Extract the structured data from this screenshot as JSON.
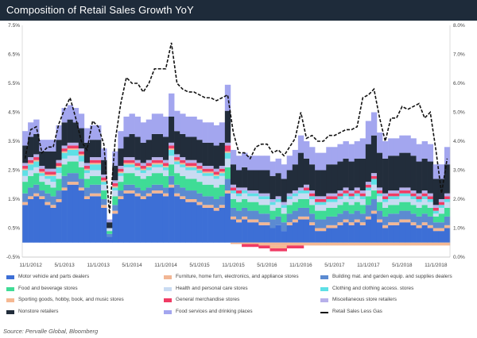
{
  "title": "Composition of Retail Sales Growth YoY",
  "source": "Source: Pervalle Global, Bloomberg",
  "chart_data": {
    "type": "bar",
    "stacked": true,
    "x_tick_labels": [
      "11/1/2012",
      "5/1/2013",
      "11/1/2013",
      "5/1/2014",
      "11/1/2014",
      "5/1/2015",
      "11/1/2015",
      "5/1/2016",
      "11/1/2016",
      "5/1/2017",
      "11/1/2017",
      "5/1/2018",
      "11/1/2018"
    ],
    "y_left": {
      "ticks": [
        "-0.5%",
        "0.5%",
        "1.5%",
        "2.5%",
        "3.5%",
        "4.5%",
        "5.5%",
        "6.5%",
        "7.5%"
      ],
      "range": [
        -0.5,
        7.5
      ]
    },
    "y_right": {
      "ticks": [
        "0.0%",
        "1.0%",
        "2.0%",
        "3.0%",
        "4.0%",
        "5.0%",
        "6.0%",
        "7.0%",
        "8.0%"
      ],
      "range": [
        0,
        8
      ]
    },
    "grid": false,
    "legend_position": "bottom",
    "categories": [
      "Oct-12",
      "Nov-12",
      "Dec-12",
      "Jan-13",
      "Feb-13",
      "Mar-13",
      "Apr-13",
      "May-13",
      "Jun-13",
      "Jul-13",
      "Aug-13",
      "Sep-13",
      "Oct-13",
      "Nov-13",
      "Dec-13",
      "Jan-14",
      "Feb-14",
      "Mar-14",
      "Apr-14",
      "May-14",
      "Jun-14",
      "Jul-14",
      "Aug-14",
      "Sep-14",
      "Oct-14",
      "Nov-14",
      "Dec-14",
      "Jan-15",
      "Feb-15",
      "Mar-15",
      "Apr-15",
      "May-15",
      "Jun-15",
      "Jul-15",
      "Aug-15",
      "Sep-15",
      "Oct-15",
      "Nov-15",
      "Dec-15",
      "Jan-16",
      "Feb-16",
      "Mar-16",
      "Apr-16",
      "May-16",
      "Jun-16",
      "Jul-16",
      "Aug-16",
      "Sep-16",
      "Oct-16",
      "Nov-16",
      "Dec-16",
      "Jan-17",
      "Feb-17",
      "Mar-17",
      "Apr-17",
      "May-17",
      "Jun-17",
      "Jul-17",
      "Aug-17",
      "Sep-17",
      "Oct-17",
      "Nov-17",
      "Dec-17",
      "Jan-18",
      "Feb-18",
      "Mar-18",
      "Apr-18",
      "May-18",
      "Jun-18",
      "Jul-18",
      "Aug-18",
      "Sep-18",
      "Oct-18",
      "Nov-18",
      "Dec-18",
      "Jan-19"
    ],
    "series": [
      {
        "name": "Motor vehicle and parts dealers",
        "color": "#3d6fd6",
        "values": [
          1.3,
          1.5,
          1.6,
          1.5,
          1.3,
          1.2,
          1.4,
          1.8,
          2.0,
          2.0,
          1.8,
          1.5,
          1.6,
          1.6,
          1.2,
          0.2,
          1.0,
          1.5,
          1.7,
          1.7,
          1.6,
          1.5,
          1.6,
          1.7,
          1.7,
          1.6,
          1.9,
          1.6,
          1.5,
          1.4,
          1.4,
          1.3,
          1.2,
          1.2,
          1.1,
          1.2,
          1.7,
          0.8,
          0.7,
          0.8,
          0.7,
          0.7,
          0.6,
          0.6,
          0.5,
          0.6,
          0.4,
          0.6,
          0.7,
          0.8,
          0.8,
          0.6,
          0.4,
          0.4,
          0.5,
          0.5,
          0.6,
          0.7,
          0.6,
          0.7,
          0.6,
          0.8,
          1.0,
          0.7,
          0.5,
          0.6,
          0.6,
          0.7,
          0.7,
          0.6,
          0.5,
          0.6,
          0.5,
          0.4,
          0.4,
          0.5
        ]
      },
      {
        "name": "Furniture, home furn, electronics, and appliance stores",
        "color": "#f2b694",
        "values": [
          0.1,
          0.1,
          0.1,
          0.1,
          0.1,
          0.1,
          0.1,
          0.1,
          0.1,
          0.1,
          0.1,
          0.1,
          0.1,
          0.1,
          0.1,
          0.0,
          0.1,
          0.1,
          0.1,
          0.1,
          0.1,
          0.1,
          0.1,
          0.1,
          0.1,
          0.1,
          0.1,
          0.1,
          0.1,
          0.1,
          0.1,
          0.1,
          0.1,
          0.1,
          0.1,
          0.1,
          0.1,
          0.1,
          0.1,
          0.1,
          0.1,
          0.1,
          0.1,
          0.1,
          -0.1,
          -0.1,
          -0.1,
          0.1,
          0.1,
          0.1,
          0.1,
          0.1,
          0.1,
          0.1,
          0.1,
          0.1,
          0.1,
          0.1,
          0.1,
          0.1,
          0.1,
          0.1,
          0.1,
          0.1,
          0.1,
          0.1,
          0.1,
          0.1,
          0.1,
          0.1,
          0.1,
          0.1,
          0.1,
          0.1,
          0.1,
          0.1
        ]
      },
      {
        "name": "Building mat. and garden equip. and supplies dealers",
        "color": "#5c8bd1",
        "values": [
          0.3,
          0.3,
          0.3,
          0.2,
          0.3,
          0.3,
          0.3,
          0.4,
          0.3,
          0.3,
          0.3,
          0.3,
          0.3,
          0.3,
          0.2,
          0.1,
          0.2,
          0.2,
          0.2,
          0.2,
          0.2,
          0.2,
          0.2,
          0.2,
          0.2,
          0.2,
          0.3,
          0.3,
          0.3,
          0.3,
          0.3,
          0.3,
          0.3,
          0.3,
          0.3,
          0.3,
          0.4,
          0.3,
          0.3,
          0.3,
          0.3,
          0.3,
          0.3,
          0.3,
          0.3,
          0.3,
          0.3,
          0.3,
          0.3,
          0.3,
          0.3,
          0.3,
          0.3,
          0.3,
          0.3,
          0.3,
          0.3,
          0.3,
          0.3,
          0.3,
          0.3,
          0.4,
          0.4,
          0.3,
          0.3,
          0.3,
          0.3,
          0.3,
          0.3,
          0.3,
          0.3,
          0.3,
          0.3,
          0.2,
          0.2,
          0.3
        ]
      },
      {
        "name": "Food and beverage stores",
        "color": "#3fdc96",
        "values": [
          0.4,
          0.4,
          0.4,
          0.3,
          0.3,
          0.3,
          0.4,
          0.4,
          0.4,
          0.4,
          0.4,
          0.3,
          0.3,
          0.3,
          0.3,
          0.1,
          0.3,
          0.3,
          0.4,
          0.4,
          0.4,
          0.4,
          0.4,
          0.4,
          0.4,
          0.4,
          0.4,
          0.4,
          0.4,
          0.4,
          0.4,
          0.4,
          0.4,
          0.4,
          0.4,
          0.4,
          0.4,
          0.3,
          0.3,
          0.3,
          0.3,
          0.3,
          0.3,
          0.3,
          0.3,
          0.3,
          0.3,
          0.3,
          0.3,
          0.3,
          0.3,
          0.3,
          0.3,
          0.3,
          0.3,
          0.3,
          0.3,
          0.3,
          0.3,
          0.3,
          0.3,
          0.3,
          0.3,
          0.3,
          0.3,
          0.3,
          0.3,
          0.3,
          0.3,
          0.3,
          0.3,
          0.3,
          0.3,
          0.2,
          0.3,
          0.3
        ]
      },
      {
        "name": "Health and personal care stores",
        "color": "#c9dbf2",
        "values": [
          0.2,
          0.2,
          0.2,
          0.2,
          0.2,
          0.2,
          0.2,
          0.2,
          0.2,
          0.2,
          0.2,
          0.2,
          0.2,
          0.2,
          0.2,
          0.1,
          0.2,
          0.2,
          0.2,
          0.2,
          0.2,
          0.2,
          0.2,
          0.2,
          0.2,
          0.2,
          0.3,
          0.3,
          0.3,
          0.3,
          0.3,
          0.3,
          0.3,
          0.3,
          0.3,
          0.3,
          0.3,
          0.2,
          0.2,
          0.2,
          0.2,
          0.2,
          0.2,
          0.2,
          0.2,
          0.2,
          0.2,
          0.2,
          0.2,
          0.2,
          0.2,
          0.2,
          0.2,
          0.2,
          0.2,
          0.2,
          0.2,
          0.2,
          0.2,
          0.2,
          0.2,
          0.2,
          0.2,
          0.2,
          0.2,
          0.2,
          0.2,
          0.2,
          0.2,
          0.2,
          0.2,
          0.2,
          0.2,
          0.1,
          0.2,
          0.2
        ]
      },
      {
        "name": "Clothing and clothing access. stores",
        "color": "#5ee0e6",
        "values": [
          0.2,
          0.2,
          0.2,
          0.1,
          0.1,
          0.2,
          0.2,
          0.2,
          0.2,
          0.2,
          0.2,
          0.1,
          0.2,
          0.2,
          0.1,
          0.0,
          0.1,
          0.1,
          0.1,
          0.1,
          0.1,
          0.1,
          0.1,
          0.1,
          0.1,
          0.1,
          0.2,
          0.1,
          0.1,
          0.1,
          0.1,
          0.1,
          0.1,
          0.1,
          0.1,
          0.1,
          0.2,
          0.1,
          0.1,
          0.1,
          0.1,
          0.1,
          0.1,
          0.1,
          0.1,
          0.1,
          0.1,
          0.1,
          0.1,
          0.1,
          0.1,
          0.1,
          0.1,
          0.1,
          0.1,
          0.1,
          0.1,
          0.1,
          0.1,
          0.1,
          0.1,
          0.1,
          0.2,
          0.1,
          0.1,
          0.1,
          0.1,
          0.1,
          0.1,
          0.1,
          0.1,
          0.1,
          0.1,
          0.1,
          0.1,
          0.1
        ]
      },
      {
        "name": "Sporting goods, hobby, book, and music stores",
        "color": "#f5b892",
        "values": [
          0.05,
          0.05,
          0.05,
          0.05,
          0.05,
          0.05,
          0.05,
          0.05,
          0.05,
          0.05,
          0.05,
          0.05,
          0.05,
          0.05,
          0.05,
          0.0,
          0.05,
          0.05,
          0.05,
          0.05,
          0.05,
          0.05,
          0.05,
          0.05,
          0.05,
          0.05,
          0.05,
          0.05,
          0.05,
          0.05,
          0.05,
          0.05,
          0.05,
          0.05,
          0.05,
          0.05,
          0.05,
          -0.05,
          -0.05,
          -0.05,
          -0.05,
          -0.05,
          -0.1,
          -0.1,
          -0.1,
          -0.1,
          -0.1,
          -0.1,
          -0.1,
          -0.1,
          -0.1,
          -0.1,
          -0.1,
          -0.1,
          -0.1,
          -0.1,
          -0.1,
          -0.1,
          -0.1,
          -0.1,
          -0.1,
          -0.1,
          -0.1,
          -0.1,
          -0.1,
          -0.1,
          -0.1,
          -0.1,
          -0.1,
          -0.1,
          -0.1,
          -0.1,
          -0.1,
          -0.1,
          -0.1,
          -0.1
        ]
      },
      {
        "name": "General merchandise stores",
        "color": "#f03b64",
        "values": [
          0.1,
          0.1,
          0.1,
          0.1,
          0.1,
          0.1,
          0.1,
          0.1,
          0.1,
          0.1,
          0.1,
          0.1,
          0.1,
          0.1,
          0.1,
          0.0,
          0.1,
          0.1,
          0.1,
          0.1,
          0.1,
          0.1,
          0.1,
          0.1,
          0.1,
          0.1,
          0.1,
          0.1,
          0.1,
          0.1,
          0.1,
          0.1,
          0.1,
          0.1,
          0.1,
          0.1,
          0.2,
          0.1,
          0.1,
          -0.1,
          -0.1,
          -0.1,
          -0.1,
          -0.1,
          -0.1,
          -0.1,
          -0.1,
          -0.1,
          -0.1,
          -0.1,
          0.1,
          0.1,
          0.1,
          0.1,
          0.1,
          0.1,
          0.1,
          0.1,
          0.1,
          0.1,
          0.1,
          0.1,
          0.1,
          0.1,
          0.1,
          0.1,
          0.1,
          0.1,
          0.1,
          0.1,
          0.1,
          0.1,
          0.1,
          0.1,
          0.1,
          0.1
        ]
      },
      {
        "name": "Miscellaneous store retailers",
        "color": "#b7b0ea",
        "values": [
          0.1,
          0.1,
          0.1,
          0.1,
          0.1,
          0.1,
          0.1,
          0.1,
          0.1,
          0.1,
          0.1,
          0.1,
          0.1,
          0.1,
          0.1,
          0.0,
          0.1,
          0.1,
          0.1,
          0.1,
          0.1,
          0.1,
          0.1,
          0.1,
          0.1,
          0.1,
          0.1,
          0.1,
          0.1,
          0.1,
          0.1,
          0.1,
          0.1,
          0.1,
          0.1,
          0.1,
          0.1,
          0.1,
          0.1,
          0.1,
          0.1,
          0.1,
          0.1,
          0.1,
          0.1,
          0.1,
          0.1,
          0.1,
          0.1,
          0.1,
          0.1,
          0.1,
          0.1,
          0.1,
          0.1,
          0.1,
          0.1,
          0.1,
          0.1,
          0.1,
          0.1,
          0.1,
          0.1,
          0.1,
          0.1,
          0.1,
          0.1,
          0.1,
          0.1,
          0.1,
          0.1,
          0.1,
          0.1,
          0.1,
          0.1,
          0.1
        ]
      },
      {
        "name": "Nonstore retailers",
        "color": "#222d3b",
        "values": [
          0.6,
          0.7,
          0.7,
          0.5,
          0.6,
          0.6,
          0.7,
          0.8,
          0.8,
          0.7,
          0.7,
          0.7,
          0.6,
          0.6,
          0.5,
          0.2,
          0.5,
          0.6,
          0.7,
          0.8,
          0.8,
          0.7,
          0.7,
          0.8,
          0.8,
          0.8,
          0.9,
          0.8,
          0.8,
          0.8,
          0.8,
          0.8,
          0.8,
          0.8,
          0.8,
          0.8,
          1.1,
          0.7,
          0.6,
          0.7,
          0.7,
          0.7,
          0.8,
          0.8,
          0.8,
          0.8,
          0.8,
          0.8,
          0.9,
          1.2,
          0.9,
          0.9,
          0.9,
          0.9,
          1.0,
          1.0,
          1.0,
          1.0,
          1.0,
          1.0,
          1.1,
          1.3,
          1.3,
          1.2,
          1.2,
          1.2,
          1.2,
          1.2,
          1.2,
          1.2,
          1.1,
          1.1,
          1.1,
          0.9,
          0.7,
          1.0
        ]
      },
      {
        "name": "Food services and drinking places",
        "color": "#a3a6ef",
        "values": [
          0.5,
          0.5,
          0.5,
          0.4,
          0.4,
          0.4,
          0.5,
          0.5,
          0.5,
          0.5,
          0.5,
          0.5,
          0.5,
          0.5,
          0.4,
          0.1,
          0.5,
          0.6,
          0.7,
          0.7,
          0.7,
          0.7,
          0.7,
          0.7,
          0.7,
          0.7,
          0.8,
          0.7,
          0.7,
          0.7,
          0.7,
          0.7,
          0.7,
          0.7,
          0.7,
          0.7,
          0.9,
          0.5,
          0.5,
          0.5,
          0.5,
          0.5,
          0.5,
          0.5,
          0.5,
          0.5,
          0.5,
          0.5,
          0.5,
          0.6,
          0.6,
          0.6,
          0.6,
          0.6,
          0.6,
          0.6,
          0.6,
          0.6,
          0.6,
          0.6,
          0.7,
          0.8,
          0.8,
          0.7,
          0.6,
          0.6,
          0.6,
          0.6,
          0.6,
          0.6,
          0.6,
          0.6,
          0.6,
          0.5,
          0.5,
          0.6
        ]
      }
    ],
    "line": {
      "name": "Retail Sales Less Gas",
      "axis": "right",
      "style": "dashed",
      "color": "#111111",
      "values": [
        3.4,
        4.4,
        4.5,
        3.6,
        3.8,
        3.8,
        4.6,
        5.1,
        5.5,
        4.8,
        4.0,
        3.7,
        4.7,
        4.5,
        3.9,
        1.5,
        4.0,
        5.3,
        6.2,
        6.0,
        6.0,
        5.7,
        6.0,
        6.5,
        6.5,
        6.5,
        7.4,
        6.0,
        5.8,
        5.7,
        5.7,
        5.6,
        5.5,
        5.5,
        5.4,
        5.5,
        5.6,
        4.3,
        3.6,
        3.6,
        3.4,
        3.8,
        3.9,
        3.9,
        3.6,
        3.7,
        3.5,
        3.8,
        4.1,
        5.0,
        4.1,
        4.2,
        4.0,
        4.0,
        4.2,
        4.2,
        4.3,
        4.4,
        4.4,
        4.5,
        5.5,
        5.6,
        5.8,
        4.8,
        4.0,
        4.8,
        4.8,
        5.2,
        5.1,
        5.2,
        5.3,
        4.8,
        5.0,
        3.7,
        2.2,
        3.4
      ]
    }
  }
}
